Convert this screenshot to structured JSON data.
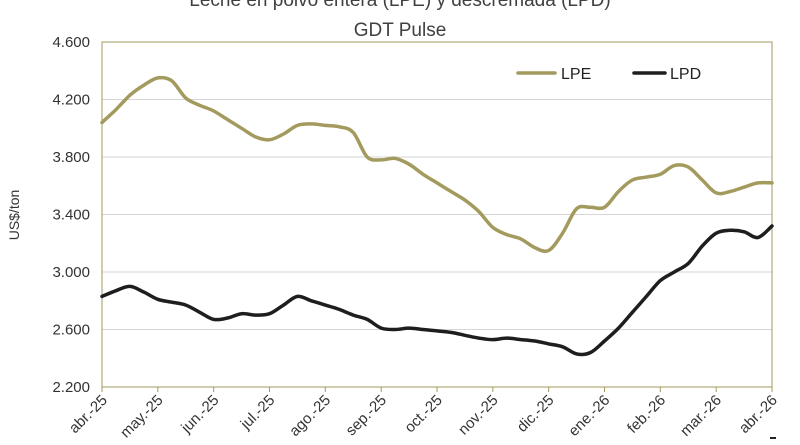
{
  "chart_data": {
    "type": "line",
    "title": "Leche en polvo entera (LPE) y descremada (LPD)",
    "subtitle": "GDT Pulse",
    "xlabel": "",
    "ylabel": "US$/ton",
    "ylim": [
      2200,
      4600
    ],
    "yticks": [
      2200,
      2600,
      3000,
      3400,
      3800,
      4200,
      4600
    ],
    "ytick_labels": [
      "2.200",
      "2.600",
      "3.000",
      "3.400",
      "3.800",
      "4.200",
      "4.600"
    ],
    "categories": [
      "abr.-25",
      "may.-25",
      "jun.-25",
      "jul.-25",
      "ago.-25",
      "sep.-25",
      "oct.-25",
      "nov.-25",
      "dic.-25",
      "ene.-26",
      "feb.-26",
      "mar.-26",
      "abr.-26"
    ],
    "grid": "horizontal",
    "legend_position": "top-right",
    "series": [
      {
        "name": "LPE",
        "color": "#a39a5e",
        "x": [
          0,
          0.25,
          0.5,
          0.75,
          1,
          1.25,
          1.5,
          1.75,
          2,
          2.25,
          2.5,
          2.75,
          3,
          3.25,
          3.5,
          3.75,
          4,
          4.25,
          4.5,
          4.75,
          5,
          5.25,
          5.5,
          5.75,
          6,
          6.25,
          6.5,
          6.75,
          7,
          7.25,
          7.5,
          7.75,
          8,
          8.25,
          8.5,
          8.75,
          9,
          9.25,
          9.5,
          9.75,
          10,
          10.25,
          10.5,
          10.75,
          11,
          11.25,
          11.5,
          11.75,
          12
        ],
        "values": [
          4040,
          4130,
          4230,
          4300,
          4350,
          4330,
          4210,
          4160,
          4120,
          4060,
          4000,
          3940,
          3920,
          3960,
          4020,
          4030,
          4020,
          4010,
          3970,
          3800,
          3780,
          3790,
          3750,
          3680,
          3620,
          3560,
          3500,
          3420,
          3310,
          3260,
          3230,
          3170,
          3150,
          3270,
          3440,
          3450,
          3450,
          3560,
          3640,
          3660,
          3680,
          3740,
          3730,
          3640,
          3550,
          3560,
          3590,
          3620,
          3620
        ]
      },
      {
        "name": "LPD",
        "color": "#1e1e1e",
        "x": [
          0,
          0.25,
          0.5,
          0.75,
          1,
          1.25,
          1.5,
          1.75,
          2,
          2.25,
          2.5,
          2.75,
          3,
          3.25,
          3.5,
          3.75,
          4,
          4.25,
          4.5,
          4.75,
          5,
          5.25,
          5.5,
          5.75,
          6,
          6.25,
          6.5,
          6.75,
          7,
          7.25,
          7.5,
          7.75,
          8,
          8.25,
          8.5,
          8.75,
          9,
          9.25,
          9.5,
          9.75,
          10,
          10.25,
          10.5,
          10.75,
          11,
          11.25,
          11.5,
          11.75,
          12
        ],
        "values": [
          2830,
          2870,
          2900,
          2860,
          2810,
          2790,
          2770,
          2720,
          2670,
          2680,
          2710,
          2700,
          2710,
          2770,
          2830,
          2800,
          2770,
          2740,
          2700,
          2670,
          2610,
          2600,
          2610,
          2600,
          2590,
          2580,
          2560,
          2540,
          2530,
          2540,
          2530,
          2520,
          2500,
          2480,
          2430,
          2440,
          2520,
          2610,
          2720,
          2830,
          2940,
          3000,
          3060,
          3180,
          3270,
          3290,
          3280,
          3240,
          3320
        ]
      }
    ]
  }
}
